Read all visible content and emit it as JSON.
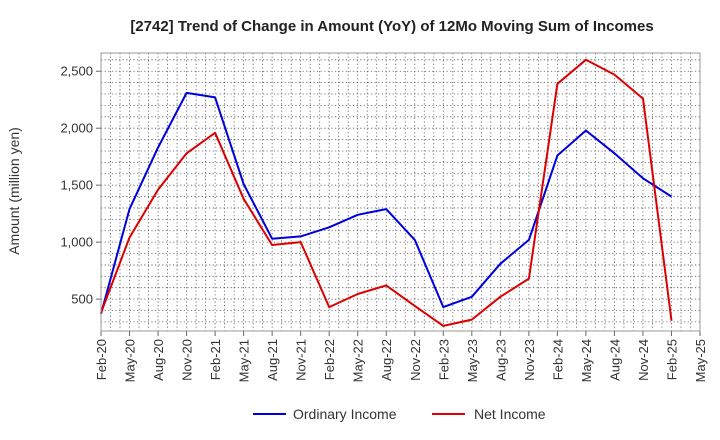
{
  "chart_data": {
    "type": "line",
    "title": "[2742]  Trend of Change in Amount (YoY) of 12Mo Moving Sum of Incomes",
    "xlabel": "",
    "ylabel": "Amount (million yen)",
    "categories": [
      "Feb-20",
      "May-20",
      "Aug-20",
      "Nov-20",
      "Feb-21",
      "May-21",
      "Aug-21",
      "Nov-21",
      "Feb-22",
      "May-22",
      "Aug-22",
      "Nov-22",
      "Feb-23",
      "May-23",
      "Aug-23",
      "Nov-23",
      "Feb-24",
      "May-24",
      "Aug-24",
      "Nov-24",
      "Feb-25",
      "May-25"
    ],
    "y_ticks": [
      500,
      1000,
      1500,
      2000,
      2500
    ],
    "y_tick_labels": [
      "500",
      "1,000",
      "1,500",
      "2,000",
      "2,500"
    ],
    "ylim": [
      220,
      2660
    ],
    "grid": true,
    "legend_position": "bottom",
    "series": [
      {
        "name": "Ordinary Income",
        "color": "#0000dd",
        "values": [
          370,
          1290,
          1830,
          2310,
          2270,
          1510,
          1030,
          1050,
          1130,
          1240,
          1290,
          1020,
          430,
          520,
          810,
          1020,
          1760,
          1980,
          1780,
          1560,
          1400,
          null
        ]
      },
      {
        "name": "Net Income",
        "color": "#dd0000",
        "values": [
          380,
          1040,
          1460,
          1780,
          1960,
          1380,
          975,
          1000,
          430,
          545,
          620,
          440,
          265,
          320,
          520,
          680,
          2390,
          2600,
          2470,
          2260,
          310,
          null
        ]
      }
    ]
  }
}
